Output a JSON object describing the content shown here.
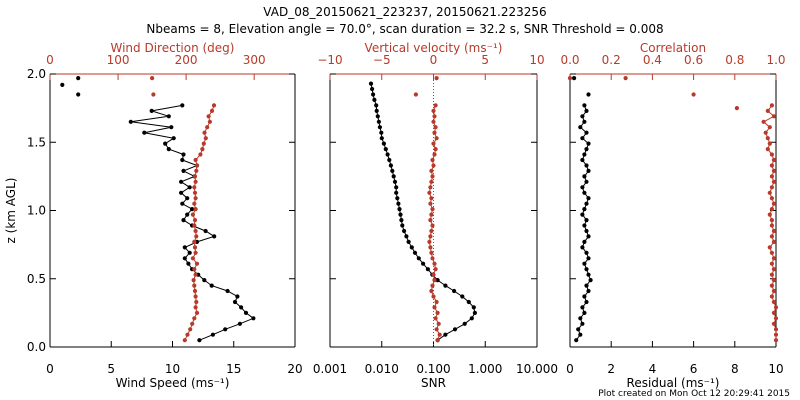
{
  "colors": {
    "black": "#000000",
    "red": "#b83a2a"
  },
  "title_line1": "VAD_08_20150621_223237, 20150621.223256",
  "title_line2": "Nbeams = 8, Elevation angle = 70.0°, scan duration = 32.2 s, SNR Threshold = 0.008",
  "footer": "Plot created on Mon Oct 12 20:29:41 2015",
  "chart_data": [
    {
      "id": "wind",
      "type": "line",
      "ylabel": "z (km AGL)",
      "ylim": [
        0,
        2
      ],
      "yticks": [
        "0.0",
        "0.5",
        "1.0",
        "1.5",
        "2.0"
      ],
      "xlabel": "Wind Speed (ms⁻¹)",
      "xlim": [
        0,
        20
      ],
      "xticks": [
        "0",
        "5",
        "10",
        "15",
        "20"
      ],
      "top_label": "Wind Direction (deg)",
      "top_lim": [
        0,
        360
      ],
      "top_ticks": [
        "0",
        "100",
        "200",
        "300"
      ],
      "series": [
        {
          "name": "Wind Speed",
          "axis": "bottom",
          "color": "black",
          "z": [
            0.05,
            0.09,
            0.13,
            0.17,
            0.21,
            0.25,
            0.29,
            0.33,
            0.37,
            0.41,
            0.45,
            0.49,
            0.53,
            0.57,
            0.61,
            0.65,
            0.69,
            0.73,
            0.77,
            0.81,
            0.85,
            0.89,
            0.93,
            0.97,
            1.01,
            1.05,
            1.09,
            1.13,
            1.17,
            1.21,
            1.25,
            1.29,
            1.33,
            1.37,
            1.41,
            1.45,
            1.49,
            1.53,
            1.57,
            1.61,
            1.65,
            1.69,
            1.73,
            1.77
          ],
          "x": [
            12.2,
            13.3,
            14.3,
            15.5,
            16.6,
            16.0,
            15.6,
            15.1,
            15.3,
            14.5,
            13.2,
            12.6,
            12.1,
            11.6,
            11.3,
            11.0,
            11.4,
            11.0,
            12.0,
            13.4,
            12.7,
            11.6,
            10.9,
            11.2,
            11.6,
            10.8,
            11.2,
            10.7,
            11.4,
            10.7,
            11.8,
            10.9,
            12.0,
            10.8,
            10.9,
            9.7,
            9.4,
            10.1,
            7.7,
            9.9,
            6.6,
            9.7,
            8.3,
            10.8
          ]
        },
        {
          "name": "Wind Speed (upper, sparse)",
          "axis": "bottom",
          "color": "black",
          "z": [
            1.85,
            1.92,
            1.97
          ],
          "x": [
            2.3,
            1.0,
            2.3
          ]
        },
        {
          "name": "Wind Direction",
          "axis": "top",
          "color": "red",
          "z": [
            0.05,
            0.09,
            0.13,
            0.17,
            0.21,
            0.25,
            0.29,
            0.33,
            0.37,
            0.41,
            0.45,
            0.49,
            0.53,
            0.57,
            0.61,
            0.65,
            0.69,
            0.73,
            0.77,
            0.81,
            0.85,
            0.89,
            0.93,
            0.97,
            1.01,
            1.05,
            1.09,
            1.13,
            1.17,
            1.21,
            1.25,
            1.29,
            1.33,
            1.37,
            1.41,
            1.45,
            1.49,
            1.53,
            1.57,
            1.61,
            1.65,
            1.69,
            1.73,
            1.77
          ],
          "x": [
            198,
            202,
            206,
            209,
            212,
            216,
            214,
            215,
            214,
            213,
            212,
            211,
            214,
            212,
            216,
            210,
            214,
            213,
            212,
            215,
            214,
            212,
            213,
            210,
            214,
            212,
            214,
            213,
            212,
            214,
            213,
            215,
            216,
            214,
            221,
            224,
            226,
            229,
            227,
            231,
            235,
            233,
            238,
            241
          ]
        },
        {
          "name": "Wind Direction (upper, sparse)",
          "axis": "top",
          "color": "red",
          "z": [
            1.85,
            1.97
          ],
          "x": [
            152,
            150
          ]
        }
      ]
    },
    {
      "id": "vertical",
      "type": "line",
      "ylim": [
        0,
        2
      ],
      "xlabel": "SNR",
      "xscale": "log",
      "xlim": [
        0.001,
        10
      ],
      "xticks": [
        "0.001",
        "0.010",
        "0.100",
        "1.000",
        "10.000"
      ],
      "top_label": "Vertical velocity (ms⁻¹)",
      "top_lim": [
        -10,
        10
      ],
      "top_ticks": [
        "−10",
        "−5",
        "0",
        "5",
        "10"
      ],
      "reference_line": {
        "axis": "top",
        "x": 0,
        "style": "dotted"
      },
      "series": [
        {
          "name": "SNR",
          "axis": "bottom",
          "color": "black",
          "z": [
            0.05,
            0.09,
            0.13,
            0.17,
            0.21,
            0.25,
            0.29,
            0.33,
            0.37,
            0.41,
            0.45,
            0.49,
            0.53,
            0.57,
            0.61,
            0.65,
            0.69,
            0.73,
            0.77,
            0.81,
            0.85,
            0.89,
            0.93,
            0.97,
            1.01,
            1.05,
            1.09,
            1.13,
            1.17,
            1.21,
            1.25,
            1.29,
            1.33,
            1.37,
            1.41,
            1.45,
            1.49,
            1.53,
            1.57,
            1.61,
            1.65,
            1.69,
            1.73,
            1.77,
            1.81,
            1.85,
            1.89,
            1.93
          ],
          "x": [
            0.12,
            0.17,
            0.26,
            0.4,
            0.55,
            0.63,
            0.6,
            0.48,
            0.36,
            0.25,
            0.17,
            0.12,
            0.095,
            0.078,
            0.063,
            0.052,
            0.044,
            0.038,
            0.033,
            0.03,
            0.027,
            0.025,
            0.024,
            0.023,
            0.022,
            0.021,
            0.02,
            0.019,
            0.019,
            0.018,
            0.017,
            0.016,
            0.015,
            0.014,
            0.013,
            0.012,
            0.011,
            0.01,
            0.0098,
            0.0092,
            0.0088,
            0.0084,
            0.008,
            0.0078,
            0.0072,
            0.0068,
            0.0065,
            0.0062
          ]
        },
        {
          "name": "Vertical velocity",
          "axis": "top",
          "color": "red",
          "z": [
            0.05,
            0.09,
            0.13,
            0.17,
            0.21,
            0.25,
            0.29,
            0.33,
            0.37,
            0.41,
            0.45,
            0.49,
            0.53,
            0.57,
            0.61,
            0.65,
            0.69,
            0.73,
            0.77,
            0.81,
            0.85,
            0.89,
            0.93,
            0.97,
            1.01,
            1.05,
            1.09,
            1.13,
            1.17,
            1.21,
            1.25,
            1.29,
            1.33,
            1.37,
            1.41,
            1.45,
            1.49,
            1.53,
            1.57,
            1.61,
            1.65,
            1.69,
            1.73,
            1.77
          ],
          "x": [
            0.4,
            0.6,
            0.3,
            0.5,
            0.2,
            0.4,
            0.1,
            0.3,
            0.0,
            -0.2,
            -0.1,
            0.1,
            0.0,
            0.2,
            0.1,
            -0.1,
            -0.2,
            -0.3,
            -0.4,
            -0.3,
            -0.2,
            -0.1,
            -0.3,
            -0.2,
            -0.1,
            -0.3,
            -0.2,
            -0.4,
            -0.3,
            -0.2,
            -0.1,
            -0.2,
            0.0,
            -0.1,
            0.1,
            0.2,
            0.0,
            0.3,
            0.1,
            0.2,
            0.0,
            0.1,
            0.0,
            0.2
          ]
        },
        {
          "name": "Vertical velocity (upper, sparse)",
          "axis": "top",
          "color": "red",
          "z": [
            1.85,
            1.97
          ],
          "x": [
            -1.7,
            0.3
          ]
        }
      ]
    },
    {
      "id": "residual",
      "type": "line",
      "ylim": [
        0,
        2
      ],
      "xlabel": "Residual (ms⁻¹)",
      "xlim": [
        0,
        10
      ],
      "xticks": [
        "0",
        "2",
        "4",
        "6",
        "8",
        "10"
      ],
      "top_label": "Correlation",
      "top_lim": [
        0,
        1
      ],
      "top_ticks": [
        "0.0",
        "0.2",
        "0.4",
        "0.6",
        "0.8",
        "1.0"
      ],
      "series": [
        {
          "name": "Residual",
          "axis": "bottom",
          "color": "black",
          "z": [
            0.05,
            0.09,
            0.13,
            0.17,
            0.21,
            0.25,
            0.29,
            0.33,
            0.37,
            0.41,
            0.45,
            0.49,
            0.53,
            0.57,
            0.61,
            0.65,
            0.69,
            0.73,
            0.77,
            0.81,
            0.85,
            0.89,
            0.93,
            0.97,
            1.01,
            1.05,
            1.09,
            1.13,
            1.17,
            1.21,
            1.25,
            1.29,
            1.33,
            1.37,
            1.41,
            1.45,
            1.49,
            1.53,
            1.57,
            1.61,
            1.65,
            1.69,
            1.73,
            1.77
          ],
          "x": [
            0.3,
            0.5,
            0.4,
            0.6,
            0.5,
            0.7,
            0.6,
            0.8,
            0.7,
            0.9,
            0.8,
            1.0,
            0.9,
            0.8,
            0.7,
            0.9,
            0.8,
            0.6,
            0.7,
            0.9,
            0.8,
            0.7,
            0.8,
            0.6,
            0.7,
            0.8,
            0.9,
            0.7,
            0.6,
            0.8,
            0.7,
            0.9,
            0.8,
            0.6,
            0.7,
            0.8,
            0.9,
            0.6,
            0.8,
            0.5,
            0.7,
            0.6,
            0.8,
            0.7
          ]
        },
        {
          "name": "Residual (upper, sparse)",
          "axis": "bottom",
          "color": "black",
          "z": [
            1.85,
            1.97
          ],
          "x": [
            0.9,
            0.2
          ]
        },
        {
          "name": "Correlation",
          "axis": "top",
          "color": "red",
          "z": [
            0.05,
            0.09,
            0.13,
            0.17,
            0.21,
            0.25,
            0.29,
            0.33,
            0.37,
            0.41,
            0.45,
            0.49,
            0.53,
            0.57,
            0.61,
            0.65,
            0.69,
            0.73,
            0.77,
            0.81,
            0.85,
            0.89,
            0.93,
            0.97,
            1.01,
            1.05,
            1.09,
            1.13,
            1.17,
            1.21,
            1.25,
            1.29,
            1.33,
            1.37,
            1.41,
            1.45,
            1.49,
            1.53,
            1.57,
            1.61,
            1.65,
            1.69,
            1.73,
            1.77
          ],
          "x": [
            1.0,
            1.0,
            1.0,
            0.99,
            1.0,
            0.99,
            1.0,
            0.99,
            0.98,
            0.99,
            0.98,
            0.99,
            0.98,
            0.99,
            0.98,
            0.99,
            0.98,
            0.97,
            0.99,
            0.98,
            0.99,
            0.98,
            0.98,
            0.97,
            0.98,
            0.99,
            0.98,
            0.97,
            0.98,
            0.99,
            0.98,
            0.99,
            0.98,
            0.99,
            0.98,
            0.96,
            0.97,
            0.96,
            0.95,
            0.97,
            0.94,
            0.99,
            0.96,
            0.98
          ]
        },
        {
          "name": "Correlation (upper, sparse)",
          "axis": "top",
          "color": "red",
          "z": [
            1.75,
            1.85,
            1.97,
            1.97
          ],
          "x": [
            0.81,
            0.6,
            0.27,
            0.0
          ]
        }
      ]
    }
  ]
}
